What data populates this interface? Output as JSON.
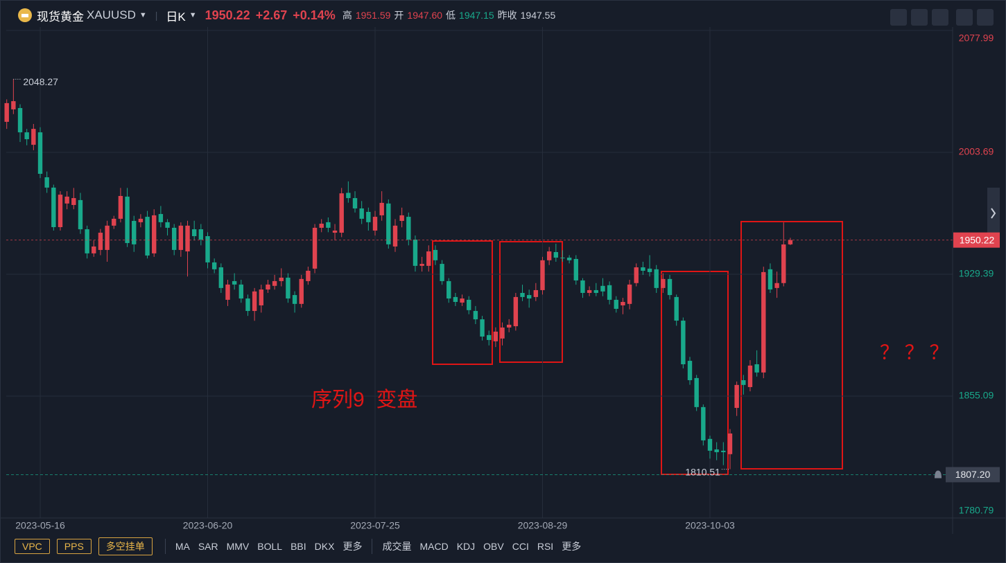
{
  "quote": {
    "symbol": "现货黄金",
    "code": "XAUUSD",
    "period": "日K",
    "price": "1950.22",
    "change": "+2.67",
    "change_pct": "+0.14%",
    "high_label": "高",
    "high": "1951.59",
    "open_label": "开",
    "open": "1947.60",
    "low_label": "低",
    "low": "1947.15",
    "prev_close_label": "昨收",
    "prev_close": "1947.55"
  },
  "toolbar": {
    "buttons": [
      "VPC",
      "PPS",
      "多空挂单"
    ],
    "main_indicators": [
      "MA",
      "SAR",
      "MMV",
      "BOLL",
      "BBI",
      "DKX"
    ],
    "more": "更多",
    "sub_indicators": [
      "成交量",
      "MACD",
      "KDJ",
      "OBV",
      "CCI",
      "RSI"
    ]
  },
  "chart_data": {
    "type": "candlestick",
    "up_color": "#e0434f",
    "down_color": "#19a98b",
    "ylim": [
      1780.79,
      2077.99
    ],
    "yticks": [
      1780.79,
      1855.09,
      1929.39,
      2003.69,
      2077.99
    ],
    "grid": true,
    "price_line": 1950.22,
    "alert_line": {
      "value": 1807.2,
      "label": "1807.20"
    },
    "max_label": 2048.27,
    "min_label": 1810.51,
    "annotations": [
      "序列9  变盘",
      "？ ？ ？"
    ],
    "categories": [
      null,
      null,
      null,
      null,
      null,
      "2023-05-16",
      null,
      null,
      null,
      null,
      null,
      null,
      null,
      null,
      null,
      null,
      null,
      null,
      null,
      null,
      null,
      null,
      null,
      null,
      null,
      null,
      null,
      null,
      null,
      null,
      "2023-06-20",
      null,
      null,
      null,
      null,
      null,
      null,
      null,
      null,
      null,
      null,
      null,
      null,
      null,
      null,
      null,
      null,
      null,
      null,
      null,
      null,
      null,
      null,
      null,
      null,
      "2023-07-25",
      null,
      null,
      null,
      null,
      null,
      null,
      null,
      null,
      null,
      null,
      null,
      null,
      null,
      null,
      null,
      null,
      null,
      null,
      null,
      null,
      null,
      null,
      null,
      null,
      "2023-08-29",
      null,
      null,
      null,
      null,
      null,
      null,
      null,
      null,
      null,
      null,
      null,
      null,
      null,
      null,
      null,
      null,
      null,
      null,
      null,
      null,
      null,
      null,
      null,
      null,
      "2023-10-03",
      null,
      null,
      null,
      null,
      null,
      null,
      null,
      null,
      null,
      null,
      null,
      null
    ],
    "ohlc": [
      [
        2022.3,
        2036,
        2018,
        2033.7
      ],
      [
        2029.9,
        2048.27,
        2027,
        2034.9
      ],
      [
        2030.7,
        2033,
        2010,
        2015.9
      ],
      [
        2015.9,
        2018,
        2008,
        2011.7
      ],
      [
        2008.3,
        2021,
        2005,
        2018.0
      ],
      [
        2015.9,
        2019,
        1988,
        1990.6
      ],
      [
        1988.5,
        1992,
        1979,
        1982.2
      ],
      [
        1982.2,
        1984,
        1956,
        1958.1
      ],
      [
        1958.1,
        1980,
        1956,
        1977.9
      ],
      [
        1972.5,
        1980,
        1969,
        1976.7
      ],
      [
        1971.6,
        1982,
        1969,
        1975.8
      ],
      [
        1974.6,
        1979,
        1954,
        1956.8
      ],
      [
        1956.8,
        1959,
        1939,
        1942.1
      ],
      [
        1942.1,
        1950,
        1940,
        1946.3
      ],
      [
        1944.2,
        1957,
        1941,
        1954.7
      ],
      [
        1944.2,
        1962,
        1937,
        1959.0
      ],
      [
        1959.0,
        1965,
        1957,
        1963.2
      ],
      [
        1963.2,
        1982,
        1961,
        1977.1
      ],
      [
        1976.7,
        1982,
        1946,
        1948.4
      ],
      [
        1961.9,
        1965,
        1943,
        1947.6
      ],
      [
        1961.1,
        1966,
        1958,
        1963.2
      ],
      [
        1964.4,
        1968,
        1939,
        1940.8
      ],
      [
        1942.1,
        1969,
        1940,
        1965.3
      ],
      [
        1966.1,
        1971,
        1958,
        1961.1
      ],
      [
        1961.1,
        1963,
        1953,
        1957.7
      ],
      [
        1957.7,
        1960,
        1941,
        1944.2
      ],
      [
        1944.2,
        1961,
        1940,
        1959.0
      ],
      [
        1943.3,
        1962,
        1928,
        1959.0
      ],
      [
        1956.8,
        1962,
        1950,
        1952.6
      ],
      [
        1956.8,
        1960,
        1947,
        1950.5
      ],
      [
        1952.6,
        1955,
        1933,
        1936.6
      ],
      [
        1936.6,
        1939,
        1930,
        1932.4
      ],
      [
        1933.6,
        1936,
        1918,
        1921.0
      ],
      [
        1913.8,
        1926,
        1910,
        1923.1
      ],
      [
        1925.2,
        1930,
        1920,
        1923.1
      ],
      [
        1923.1,
        1926,
        1912,
        1914.6
      ],
      [
        1914.6,
        1917,
        1904,
        1907.0
      ],
      [
        1907.0,
        1921,
        1901,
        1918.9
      ],
      [
        1910.4,
        1923,
        1906,
        1920.1
      ],
      [
        1920.1,
        1926,
        1918,
        1923.1
      ],
      [
        1922.3,
        1929,
        1920,
        1925.2
      ],
      [
        1925.2,
        1933,
        1922,
        1927.3
      ],
      [
        1927.3,
        1930,
        1912,
        1914.6
      ],
      [
        1916.7,
        1919,
        1906,
        1911.3
      ],
      [
        1911.3,
        1929,
        1909,
        1926.5
      ],
      [
        1925.2,
        1934,
        1923,
        1931.5
      ],
      [
        1932.8,
        1960,
        1930,
        1957.7
      ],
      [
        1957.7,
        1963,
        1955,
        1960.2
      ],
      [
        1961.1,
        1964,
        1955,
        1957.7
      ],
      [
        1954.7,
        1960,
        1950,
        1956.0
      ],
      [
        1954.7,
        1982,
        1952,
        1978.7
      ],
      [
        1979,
        1986,
        1973,
        1975.8
      ],
      [
        1975.8,
        1980,
        1967,
        1969.5
      ],
      [
        1969.5,
        1974,
        1960,
        1963.2
      ],
      [
        1967.4,
        1970,
        1956,
        1961.1
      ],
      [
        1956.0,
        1968,
        1953,
        1964.4
      ],
      [
        1965.3,
        1980,
        1962,
        1972.9
      ],
      [
        1972.5,
        1975,
        1945,
        1947.6
      ],
      [
        1946.3,
        1963,
        1943,
        1959.0
      ],
      [
        1961.9,
        1970,
        1958,
        1965.3
      ],
      [
        1964.4,
        1967,
        1947,
        1950.5
      ],
      [
        1950.5,
        1953,
        1931,
        1934.5
      ],
      [
        1934.5,
        1940,
        1931,
        1935.7
      ],
      [
        1934.5,
        1947,
        1931,
        1943.3
      ],
      [
        1944.2,
        1947,
        1935,
        1937.9
      ],
      [
        1935.7,
        1938,
        1923,
        1925.2
      ],
      [
        1925.2,
        1927,
        1912,
        1914.6
      ],
      [
        1915.5,
        1918,
        1910,
        1912.5
      ],
      [
        1912.1,
        1917,
        1910,
        1914.6
      ],
      [
        1913.8,
        1916,
        1905,
        1907.5
      ],
      [
        1907.0,
        1910,
        1899,
        1901.9
      ],
      [
        1901.9,
        1904,
        1889,
        1891.4
      ],
      [
        1892.3,
        1895,
        1886,
        1889.3
      ],
      [
        1888.5,
        1897,
        1885,
        1894.4
      ],
      [
        1890.2,
        1900,
        1886,
        1896.9
      ],
      [
        1896.9,
        1902,
        1894,
        1898.6
      ],
      [
        1897.7,
        1918,
        1895,
        1915.5
      ],
      [
        1918.0,
        1923,
        1913,
        1915.5
      ],
      [
        1916.7,
        1920,
        1909,
        1914.6
      ],
      [
        1915.5,
        1924,
        1913,
        1919.7
      ],
      [
        1919.7,
        1940,
        1917,
        1937.9
      ],
      [
        1937.9,
        1946,
        1935,
        1943.3
      ],
      [
        1942.9,
        1948,
        1937,
        1939.5
      ],
      [
        1939.5,
        1944,
        1937,
        1939.1
      ],
      [
        1939.5,
        1941,
        1936,
        1937.9
      ],
      [
        1938.7,
        1941,
        1923,
        1925.6
      ],
      [
        1925.6,
        1927,
        1915,
        1918.0
      ],
      [
        1918.0,
        1922,
        1916,
        1919.7
      ],
      [
        1919.7,
        1924,
        1916,
        1918.0
      ],
      [
        1922.3,
        1927,
        1916,
        1918.9
      ],
      [
        1922.7,
        1925,
        1911,
        1913.8
      ],
      [
        1913.8,
        1916,
        1906,
        1908.3
      ],
      [
        1910.4,
        1915,
        1905,
        1912.5
      ],
      [
        1911.3,
        1926,
        1908,
        1923.1
      ],
      [
        1924.0,
        1936,
        1922,
        1933.6
      ],
      [
        1933.6,
        1937,
        1929,
        1931.5
      ],
      [
        1932.8,
        1941,
        1928,
        1930.7
      ],
      [
        1932.4,
        1935,
        1918,
        1921.0
      ],
      [
        1921.0,
        1930,
        1918,
        1926.5
      ],
      [
        1926.5,
        1929,
        1914,
        1916.7
      ],
      [
        1915.5,
        1917,
        1898,
        1901.1
      ],
      [
        1901.1,
        1903,
        1872,
        1874.5
      ],
      [
        1876.6,
        1879,
        1862,
        1864.8
      ],
      [
        1866.1,
        1868,
        1846,
        1848.4
      ],
      [
        1848.4,
        1850,
        1825,
        1828.1
      ],
      [
        1829.0,
        1831,
        1817,
        1821.8
      ],
      [
        1822.6,
        1827,
        1816,
        1820.9
      ],
      [
        1821.8,
        1827,
        1813,
        1820.9
      ],
      [
        1819.7,
        1835,
        1810.51,
        1832.3
      ],
      [
        1847.9,
        1864,
        1843,
        1861.9
      ],
      [
        1864.8,
        1868,
        1856,
        1861.9
      ],
      [
        1860.6,
        1877,
        1858,
        1873.7
      ],
      [
        1874.5,
        1883,
        1867,
        1869.5
      ],
      [
        1869.5,
        1934,
        1866,
        1930.7
      ],
      [
        1932.4,
        1936,
        1918,
        1920.1
      ],
      [
        1921.0,
        1931,
        1915,
        1924.0
      ],
      [
        1924.0,
        1961,
        1922,
        1947.55
      ],
      [
        1947.6,
        1951.59,
        1947.15,
        1950.22
      ]
    ]
  }
}
